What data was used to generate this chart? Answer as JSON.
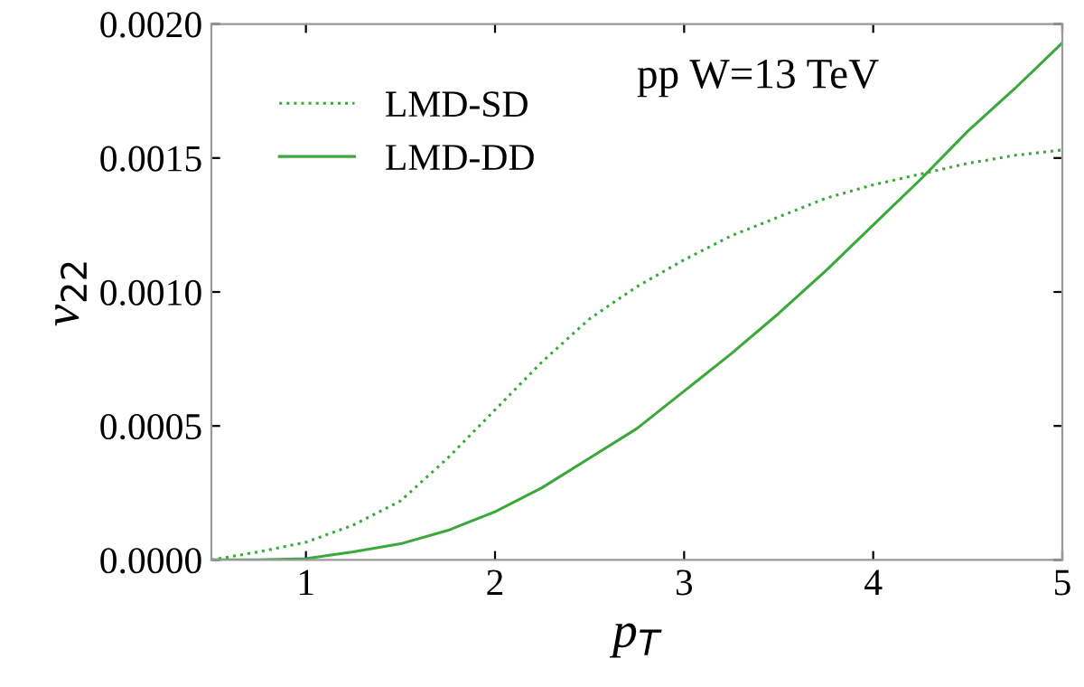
{
  "chart_data": {
    "type": "line",
    "xlabel": "p$_{T}$",
    "ylabel": "v$_{22}$",
    "annotations": [
      "pp W=13 TeV"
    ],
    "xlim": [
      0.5,
      5
    ],
    "xticks": [
      1,
      2,
      3,
      4,
      5
    ],
    "ylim": [
      0,
      0.002
    ],
    "yticks": [
      {
        "value": 0,
        "label": "0.0000"
      },
      {
        "value": 0.0005,
        "label": "0.0005"
      },
      {
        "value": 0.001,
        "label": "0.0010"
      },
      {
        "value": 0.0015,
        "label": "0.0015"
      },
      {
        "value": 0.002,
        "label": "0.0020"
      }
    ],
    "x": [
      0.5,
      0.75,
      1,
      1.25,
      1.5,
      1.75,
      2,
      2.25,
      2.5,
      2.75,
      3,
      3.25,
      3.5,
      3.75,
      4,
      4.25,
      4.5,
      4.75,
      5
    ],
    "series": [
      {
        "name": "LMD-SD",
        "color": "#3aa83a",
        "line_style": "dotted",
        "values": [
          0,
          3e-05,
          6.6e-05,
          0.00013,
          0.00022,
          0.00038,
          0.00056,
          0.00074,
          0.0009,
          0.00102,
          0.00112,
          0.00121,
          0.00128,
          0.00135,
          0.0014,
          0.00144,
          0.00148,
          0.00151,
          0.00153
        ]
      },
      {
        "name": "LMD-DD",
        "color": "#3aa83a",
        "line_style": "solid",
        "values": [
          0,
          0,
          5e-06,
          3e-05,
          6e-05,
          0.00011,
          0.00018,
          0.00027,
          0.00038,
          0.00049,
          0.00063,
          0.00077,
          0.00092,
          0.00108,
          0.00125,
          0.00142,
          0.0016,
          0.00176,
          0.00193
        ]
      }
    ],
    "grid": false,
    "legend": "top left"
  }
}
